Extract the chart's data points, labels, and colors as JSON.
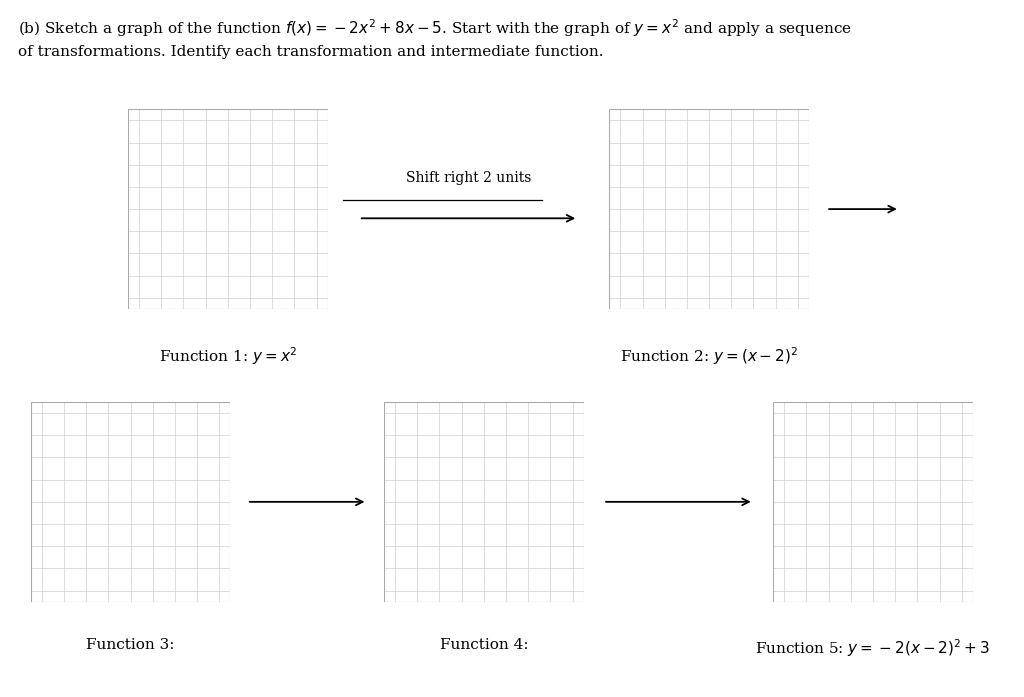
{
  "background_color": "#ffffff",
  "grid_color": "#d0d0d0",
  "axis_color": "#000000",
  "grid_rows": 9,
  "grid_cols": 9,
  "axis_lw": 2.0,
  "grid_lw": 0.5,
  "header_line1": "(b) Sketch a graph of the function $f(x) = -2x^2 + 8x - 5$. Start with the graph of $y = x^2$ and apply a sequence",
  "header_line2": "of transformations. Identify each transformation and intermediate function.",
  "label1": "Function 1: $y = x^2$",
  "label2": "Function 2: $y = (x-2)^2$",
  "label3": "Function 3:",
  "label4": "Function 4:",
  "label5": "Function 5: $y = -2(x-2)^2 + 3$",
  "shift_label": "Shift right 2 units",
  "fontsize_header": 11,
  "fontsize_label": 11,
  "fontsize_arrow_label": 10
}
